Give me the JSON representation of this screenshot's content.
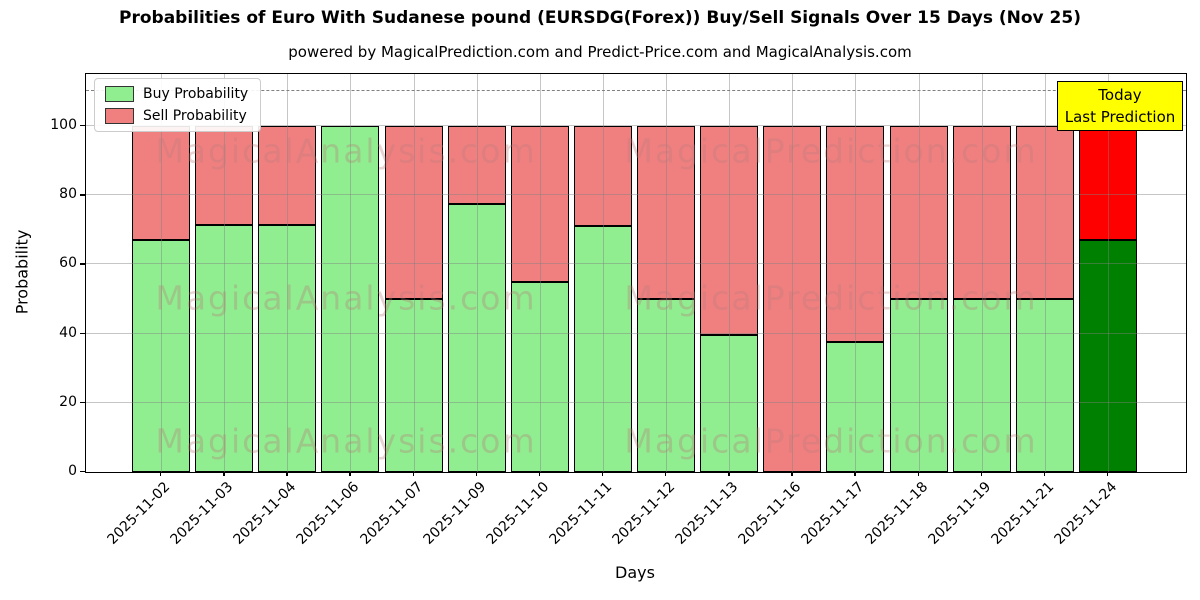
{
  "title": "Probabilities of Euro With Sudanese pound (EURSDG(Forex)) Buy/Sell Signals Over 15 Days (Nov 25)",
  "subtitle": "powered by MagicalPrediction.com and Predict-Price.com and MagicalAnalysis.com",
  "y_axis": {
    "label": "Probability",
    "ticks": [
      0,
      20,
      40,
      60,
      80,
      100
    ],
    "max": 115
  },
  "x_axis": {
    "label": "Days"
  },
  "reference_line": {
    "value": 110,
    "style": "dashed",
    "color": "#808080"
  },
  "legend": {
    "items": [
      {
        "label": "Buy Probability",
        "color": "#90EE90"
      },
      {
        "label": "Sell Probability",
        "color": "#F08080"
      }
    ]
  },
  "today_annotation": {
    "lines": [
      "Today",
      "Last Prediction"
    ],
    "bg_color": "#FFFF00"
  },
  "watermarks": {
    "left_text": "MagicalAnalysis.com",
    "right_text": "MagicalPrediction.com"
  },
  "colors": {
    "buy": "#90EE90",
    "sell": "#F08080",
    "today_buy": "#008000",
    "today_sell": "#FF0000",
    "bar_edge": "#000000",
    "grid": "#c0c0c0",
    "today_box_bg": "#FFFF00"
  },
  "chart_data": {
    "type": "bar",
    "stacked": true,
    "title": "Probabilities of Euro With Sudanese pound (EURSDG(Forex)) Buy/Sell Signals Over 15 Days (Nov 25)",
    "xlabel": "Days",
    "ylabel": "Probability",
    "ylim": [
      0,
      115
    ],
    "grid": true,
    "legend_position": "upper left",
    "categories": [
      "2025-11-02",
      "2025-11-03",
      "2025-11-04",
      "2025-11-06",
      "2025-11-07",
      "2025-11-09",
      "2025-11-10",
      "2025-11-11",
      "2025-11-12",
      "2025-11-13",
      "2025-11-16",
      "2025-11-17",
      "2025-11-18",
      "2025-11-19",
      "2025-11-21",
      "2025-11-24"
    ],
    "series": [
      {
        "name": "Buy Probability",
        "color": "#90EE90",
        "values": [
          67,
          71.5,
          71.5,
          100,
          50,
          77.5,
          55,
          71,
          50,
          39.5,
          0,
          37.5,
          50,
          50,
          50,
          67
        ]
      },
      {
        "name": "Sell Probability",
        "color": "#F08080",
        "values": [
          33,
          28.5,
          28.5,
          0,
          50,
          22.5,
          45,
          29,
          50,
          60.5,
          100,
          62.5,
          50,
          50,
          50,
          33
        ]
      }
    ],
    "today_bar": {
      "category": "2025-11-24",
      "buy": 67,
      "sell": 33,
      "buy_color": "#008000",
      "sell_color": "#FF0000"
    },
    "annotation": "Today Last Prediction",
    "dashed_reference_y": 110
  }
}
